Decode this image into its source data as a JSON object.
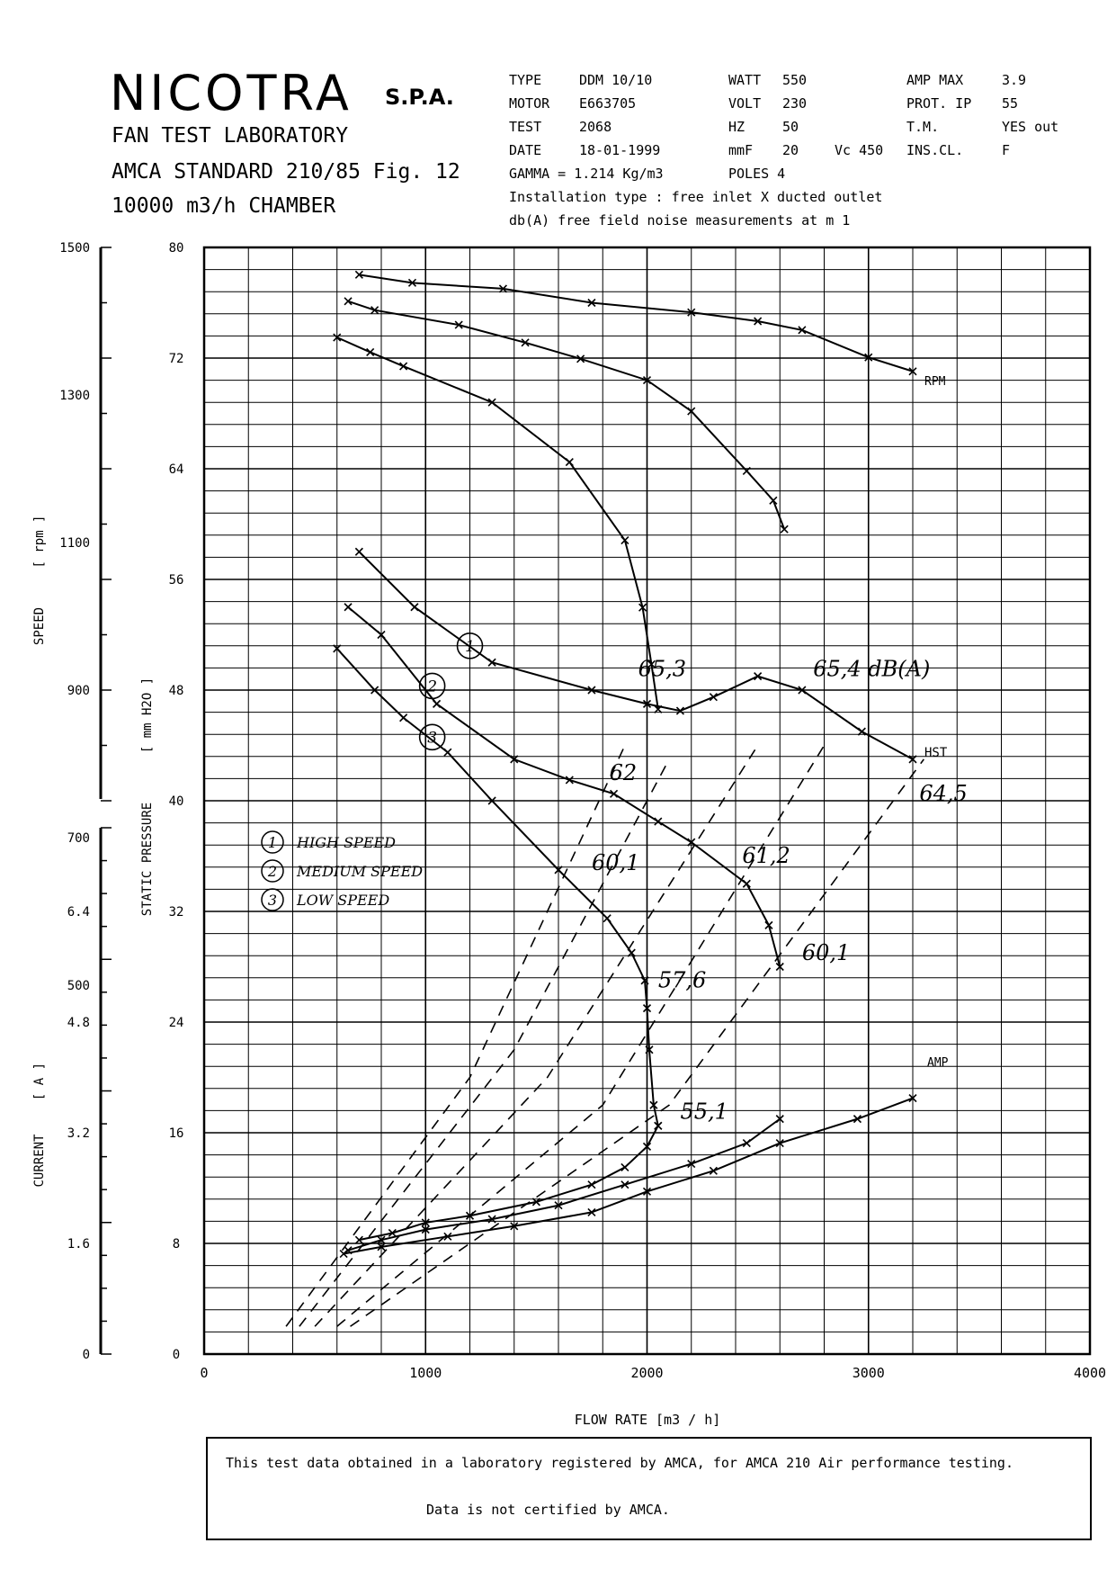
{
  "header": {
    "brand": "NICOTRA",
    "brand_suffix": "S.P.A.",
    "line1": "FAN TEST LABORATORY",
    "line2": "AMCA STANDARD 210/85 Fig. 12",
    "line3": "10000 m3/h  CHAMBER"
  },
  "specs": {
    "type_label": "TYPE",
    "type_value": "DDM 10/10",
    "motor_label": "MOTOR",
    "motor_value": "E663705",
    "test_label": "TEST",
    "test_value": "2068",
    "date_label": "DATE",
    "date_value": "18-01-1999",
    "gamma": "GAMMA = 1.214 Kg/m3",
    "watt_label": "WATT",
    "watt_value": "550",
    "volt_label": "VOLT",
    "volt_value": "230",
    "hz_label": "HZ",
    "hz_value": "50",
    "muf_label": "mmF",
    "muf_value": "20",
    "vc": "Vc 450",
    "poles": "POLES 4",
    "ampmax_label": "AMP MAX",
    "ampmax_value": "3.9",
    "prot_label": "PROT.  IP",
    "prot_value": "55",
    "tm_label": "T.M.",
    "tm_value": "YES out",
    "inscl_label": "INS.CL.",
    "inscl_value": "F",
    "install": "Installation type :  free inlet X ducted outlet",
    "noise": "db(A)  free field noise measurements at m   1"
  },
  "legend": {
    "high": "HIGH SPEED",
    "medium": "MEDIUM SPEED",
    "low": "LOW SPEED",
    "n1": "1",
    "n2": "2",
    "n3": "3"
  },
  "footer": {
    "line1": "This test data obtained in a laboratory registered by AMCA, for AMCA 210 Air performance testing.",
    "line2": "Data is not certified by AMCA."
  },
  "chart_data": {
    "type": "line",
    "x_axis": {
      "label": "FLOW RATE   [m3 / h]",
      "range": [
        0,
        4000
      ],
      "ticks": [
        "0",
        "1000",
        "2000",
        "3000",
        "4000"
      ]
    },
    "pressure_axis": {
      "label": "STATIC PRESSURE",
      "unit": "[ mm H2O ]",
      "range": [
        0,
        80
      ],
      "ticks": [
        "0",
        "8",
        "16",
        "24",
        "32",
        "40",
        "48",
        "56",
        "64",
        "72",
        "80"
      ]
    },
    "speed_axis": {
      "label": "SPEED",
      "unit": "[ rpm ]",
      "range": [
        500,
        1500
      ],
      "ticks": [
        "500",
        "700",
        "900",
        "1100",
        "1300",
        "1500"
      ]
    },
    "current_axis": {
      "label": "CURRENT",
      "unit": "[ A ]",
      "range": [
        0,
        6.4
      ],
      "ticks": [
        "0",
        "1.6",
        "3.2",
        "4.8",
        "6.4"
      ]
    },
    "grid": true,
    "series": [
      {
        "name": "RPM",
        "axis": "speed",
        "style": "solid",
        "x": [
          700,
          940,
          1350,
          1750,
          2200,
          2500,
          2700,
          3000,
          3200
        ],
        "y": [
          1463,
          1452,
          1444,
          1425,
          1412,
          1400,
          1388,
          1351,
          1332
        ]
      },
      {
        "name": "",
        "axis": "speed",
        "style": "solid",
        "x": [
          650,
          770,
          1150,
          1450,
          1700,
          2000,
          2200,
          2450,
          2570,
          2620
        ],
        "y": [
          1427,
          1415,
          1395,
          1371,
          1349,
          1320,
          1278,
          1197,
          1157,
          1118
        ]
      },
      {
        "name": "",
        "axis": "speed",
        "style": "solid",
        "x": [
          600,
          750,
          900,
          1300,
          1650,
          1900,
          1980,
          2020,
          2050
        ],
        "y": [
          1378,
          1358,
          1339,
          1290,
          1209,
          1103,
          1012,
          935,
          874
        ]
      },
      {
        "name": "1",
        "axis": "pressure",
        "style": "solid",
        "x": [
          700,
          950,
          1300,
          1750,
          2000,
          2150,
          2300,
          2500,
          2700,
          2970,
          3200
        ],
        "y": [
          58,
          54,
          50,
          48,
          47,
          46.5,
          47.5,
          49,
          48,
          45,
          43
        ]
      },
      {
        "name": "2",
        "axis": "pressure",
        "style": "solid",
        "x": [
          650,
          800,
          1050,
          1400,
          1650,
          1850,
          2050,
          2200,
          2450,
          2550,
          2600
        ],
        "y": [
          54,
          52,
          47,
          43,
          41.5,
          40.5,
          38.5,
          37,
          34,
          31,
          28
        ]
      },
      {
        "name": "3",
        "axis": "pressure",
        "style": "solid",
        "x": [
          600,
          770,
          900,
          1100,
          1300,
          1600,
          1820,
          1930,
          1990,
          2000,
          2010,
          2030,
          2050
        ],
        "y": [
          51,
          48,
          46,
          43.5,
          40,
          35,
          31.5,
          29,
          27,
          25,
          22,
          18,
          16.5
        ]
      },
      {
        "name": "AMP",
        "axis": "current",
        "style": "solid",
        "x": [
          630,
          800,
          1100,
          1400,
          1750,
          2000,
          2300,
          2600,
          2950,
          3200
        ],
        "y": [
          1.45,
          1.55,
          1.7,
          1.85,
          2.05,
          2.35,
          2.65,
          3.05,
          3.4,
          3.7
        ]
      },
      {
        "name": "",
        "axis": "current",
        "style": "solid",
        "x": [
          650,
          800,
          1000,
          1300,
          1600,
          1900,
          2200,
          2450,
          2600
        ],
        "y": [
          1.5,
          1.65,
          1.8,
          1.95,
          2.15,
          2.45,
          2.75,
          3.05,
          3.4
        ]
      },
      {
        "name": "",
        "axis": "current",
        "style": "solid",
        "x": [
          700,
          850,
          1000,
          1200,
          1500,
          1750,
          1900,
          2000,
          2050
        ],
        "y": [
          1.65,
          1.75,
          1.9,
          2.0,
          2.2,
          2.45,
          2.7,
          3.0,
          3.3
        ]
      }
    ],
    "system_lines": [
      {
        "x": [
          370,
          1200,
          1900
        ],
        "y": [
          2,
          20,
          44
        ]
      },
      {
        "x": [
          430,
          1400,
          2100
        ],
        "y": [
          2,
          22,
          43
        ]
      },
      {
        "x": [
          500,
          1550,
          2500
        ],
        "y": [
          2,
          20,
          44
        ]
      },
      {
        "x": [
          600,
          1800,
          2800
        ],
        "y": [
          2,
          18,
          44
        ]
      },
      {
        "x": [
          660,
          2100,
          3250
        ],
        "y": [
          2,
          18,
          43
        ]
      }
    ],
    "annotations": [
      {
        "text": "65,3",
        "x": 1960,
        "y": 49
      },
      {
        "text": "65,4  dB(A)",
        "x": 2750,
        "y": 49
      },
      {
        "text": "62",
        "x": 1830,
        "y": 41.5
      },
      {
        "text": "64,5",
        "x": 3230,
        "y": 40
      },
      {
        "text": "61,2",
        "x": 2430,
        "y": 35.5
      },
      {
        "text": "60,1",
        "x": 1750,
        "y": 35
      },
      {
        "text": "60,1",
        "x": 2700,
        "y": 28.5
      },
      {
        "text": "57,6",
        "x": 2050,
        "y": 26.5
      },
      {
        "text": "55,1",
        "x": 2150,
        "y": 17
      }
    ],
    "series_labels": {
      "rpm": "RPM",
      "hst": "HST",
      "amp": "AMP"
    }
  }
}
